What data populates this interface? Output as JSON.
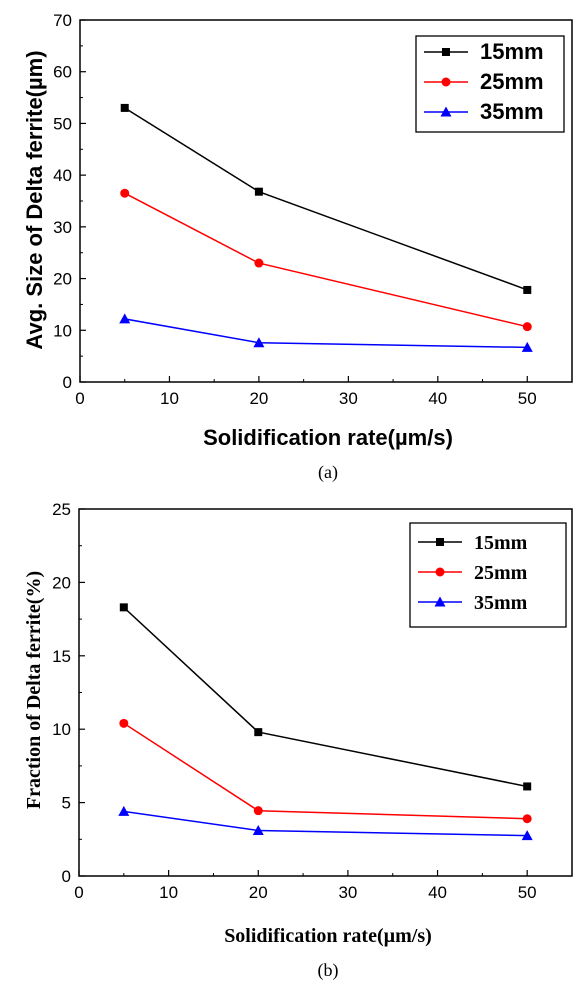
{
  "chart_data": [
    {
      "type": "line",
      "caption": "(a)",
      "xlabel": "Solidification rate(µm/s)",
      "ylabel": "Avg. Size of Delta ferrite(µm)",
      "xlim": [
        0,
        55
      ],
      "ylim": [
        0,
        70
      ],
      "xticks": [
        0,
        10,
        20,
        30,
        40,
        50
      ],
      "yticks": [
        0,
        10,
        20,
        30,
        40,
        50,
        60,
        70
      ],
      "grid": false,
      "legend_position": "top-right",
      "x": [
        5,
        20,
        50
      ],
      "series": [
        {
          "name": "15mm",
          "values": [
            53.0,
            36.8,
            17.8
          ],
          "color": "#000000",
          "marker": "square"
        },
        {
          "name": "25mm",
          "values": [
            36.5,
            23.0,
            10.7
          ],
          "color": "#ff0000",
          "marker": "circle"
        },
        {
          "name": "35mm",
          "values": [
            12.2,
            7.6,
            6.7
          ],
          "color": "#0000ff",
          "marker": "triangle"
        }
      ]
    },
    {
      "type": "line",
      "caption": "(b)",
      "xlabel": "Solidification rate(µm/s)",
      "ylabel": "Fraction of Delta ferrite(%)",
      "xlim": [
        0,
        55
      ],
      "ylim": [
        0,
        25
      ],
      "xticks": [
        0,
        10,
        20,
        30,
        40,
        50
      ],
      "yticks": [
        0,
        5,
        10,
        15,
        20,
        25
      ],
      "grid": false,
      "legend_position": "top-right",
      "x": [
        5,
        20,
        50
      ],
      "series": [
        {
          "name": "15mm",
          "values": [
            18.3,
            9.8,
            6.1
          ],
          "color": "#000000",
          "marker": "square"
        },
        {
          "name": "25mm",
          "values": [
            10.4,
            4.45,
            3.9
          ],
          "color": "#ff0000",
          "marker": "circle"
        },
        {
          "name": "35mm",
          "values": [
            4.4,
            3.1,
            2.75
          ],
          "color": "#0000ff",
          "marker": "triangle"
        }
      ]
    }
  ]
}
